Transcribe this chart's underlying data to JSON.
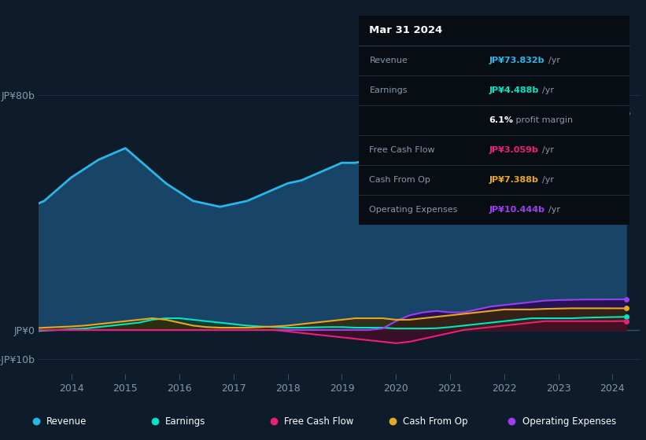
{
  "bg_color": "#0d1b2a",
  "plot_bg_color": "#0d1b2a",
  "grid_color": "#1e3050",
  "ylim": [
    -15,
    90
  ],
  "yticks": [
    -10,
    0,
    80
  ],
  "ytick_labels": [
    "-JP¥10b",
    "JP¥0",
    "JP¥80b"
  ],
  "xlim_start": 2013.4,
  "xlim_end": 2024.5,
  "xticks": [
    2014,
    2015,
    2016,
    2017,
    2018,
    2019,
    2020,
    2021,
    2022,
    2023,
    2024
  ],
  "revenue_color": "#29b6e8",
  "revenue_fill": "#1a4a6e",
  "earnings_color": "#00e5c3",
  "earnings_fill": "#0a3d35",
  "free_cash_color": "#e8207a",
  "free_cash_fill": "#4a0a25",
  "cash_from_op_color": "#e8a820",
  "cash_from_op_fill": "#3a2800",
  "op_expenses_color": "#9b3ff0",
  "op_expenses_fill": "#2a0a50",
  "revenue_data": {
    "years": [
      2013.25,
      2013.5,
      2013.75,
      2014.0,
      2014.25,
      2014.5,
      2014.75,
      2015.0,
      2015.25,
      2015.5,
      2015.75,
      2016.0,
      2016.25,
      2016.5,
      2016.75,
      2017.0,
      2017.25,
      2017.5,
      2017.75,
      2018.0,
      2018.25,
      2018.5,
      2018.75,
      2019.0,
      2019.25,
      2019.5,
      2019.75,
      2020.0,
      2020.25,
      2020.5,
      2020.75,
      2021.0,
      2021.25,
      2021.5,
      2021.75,
      2022.0,
      2022.25,
      2022.5,
      2022.75,
      2023.0,
      2023.25,
      2023.5,
      2023.75,
      2024.0,
      2024.25
    ],
    "values": [
      42,
      44,
      48,
      52,
      55,
      58,
      60,
      62,
      58,
      54,
      50,
      47,
      44,
      43,
      42,
      43,
      44,
      46,
      48,
      50,
      51,
      53,
      55,
      57,
      57,
      58,
      59,
      58,
      56,
      57,
      58,
      60,
      62,
      65,
      68,
      70,
      73,
      76,
      78,
      78,
      77,
      76,
      75,
      74,
      73.832
    ]
  },
  "earnings_data": {
    "years": [
      2013.25,
      2013.5,
      2013.75,
      2014.0,
      2014.25,
      2014.5,
      2014.75,
      2015.0,
      2015.25,
      2015.5,
      2015.75,
      2016.0,
      2016.25,
      2016.5,
      2016.75,
      2017.0,
      2017.25,
      2017.5,
      2017.75,
      2018.0,
      2018.25,
      2018.5,
      2018.75,
      2019.0,
      2019.25,
      2019.5,
      2019.75,
      2020.0,
      2020.25,
      2020.5,
      2020.75,
      2021.0,
      2021.25,
      2021.5,
      2021.75,
      2022.0,
      2022.25,
      2022.5,
      2022.75,
      2023.0,
      2023.25,
      2023.5,
      2023.75,
      2024.0,
      2024.25
    ],
    "values": [
      -0.5,
      -0.2,
      0.0,
      0.3,
      0.5,
      1.0,
      1.5,
      2.0,
      2.5,
      3.5,
      4.0,
      4.0,
      3.5,
      3.0,
      2.5,
      2.0,
      1.5,
      1.2,
      1.0,
      0.8,
      0.8,
      0.9,
      1.0,
      1.0,
      0.8,
      0.8,
      0.8,
      0.5,
      0.5,
      0.5,
      0.6,
      1.0,
      1.5,
      2.0,
      2.5,
      3.0,
      3.5,
      4.0,
      4.0,
      4.0,
      4.0,
      4.2,
      4.3,
      4.4,
      4.488
    ]
  },
  "free_cash_data": {
    "years": [
      2013.25,
      2013.5,
      2013.75,
      2014.0,
      2014.25,
      2014.5,
      2014.75,
      2015.0,
      2015.25,
      2015.5,
      2015.75,
      2016.0,
      2016.25,
      2016.5,
      2016.75,
      2017.0,
      2017.25,
      2017.5,
      2017.75,
      2018.0,
      2018.25,
      2018.5,
      2018.75,
      2019.0,
      2019.25,
      2019.5,
      2019.75,
      2020.0,
      2020.25,
      2020.5,
      2020.75,
      2021.0,
      2021.25,
      2021.5,
      2021.75,
      2022.0,
      2022.25,
      2022.5,
      2022.75,
      2023.0,
      2023.25,
      2023.5,
      2023.75,
      2024.0,
      2024.25
    ],
    "values": [
      0.0,
      0.0,
      0.0,
      0.0,
      0.0,
      0.0,
      0.0,
      0.0,
      0.0,
      0.0,
      0.0,
      0.0,
      0.0,
      0.0,
      0.0,
      0.0,
      0.0,
      0.0,
      0.0,
      -0.5,
      -1.0,
      -1.5,
      -2.0,
      -2.5,
      -3.0,
      -3.5,
      -4.0,
      -4.5,
      -4.0,
      -3.0,
      -2.0,
      -1.0,
      0.0,
      0.5,
      1.0,
      1.5,
      2.0,
      2.5,
      3.0,
      3.0,
      3.0,
      3.0,
      3.0,
      3.0,
      3.059
    ]
  },
  "cash_from_op_data": {
    "years": [
      2013.25,
      2013.5,
      2013.75,
      2014.0,
      2014.25,
      2014.5,
      2014.75,
      2015.0,
      2015.25,
      2015.5,
      2015.75,
      2016.0,
      2016.25,
      2016.5,
      2016.75,
      2017.0,
      2017.25,
      2017.5,
      2017.75,
      2018.0,
      2018.25,
      2018.5,
      2018.75,
      2019.0,
      2019.25,
      2019.5,
      2019.75,
      2020.0,
      2020.25,
      2020.5,
      2020.75,
      2021.0,
      2021.25,
      2021.5,
      2021.75,
      2022.0,
      2022.25,
      2022.5,
      2022.75,
      2023.0,
      2023.25,
      2023.5,
      2023.75,
      2024.0,
      2024.25
    ],
    "values": [
      0.5,
      0.8,
      1.0,
      1.2,
      1.5,
      2.0,
      2.5,
      3.0,
      3.5,
      4.0,
      3.5,
      2.5,
      1.5,
      1.0,
      0.8,
      0.8,
      0.8,
      1.0,
      1.2,
      1.5,
      2.0,
      2.5,
      3.0,
      3.5,
      4.0,
      4.0,
      4.0,
      3.5,
      3.5,
      4.0,
      4.5,
      5.0,
      5.5,
      6.0,
      6.5,
      7.0,
      7.0,
      7.0,
      7.2,
      7.3,
      7.4,
      7.4,
      7.4,
      7.388,
      7.388
    ]
  },
  "op_expenses_data": {
    "years": [
      2013.25,
      2013.5,
      2013.75,
      2014.0,
      2014.25,
      2014.5,
      2014.75,
      2015.0,
      2015.25,
      2015.5,
      2015.75,
      2016.0,
      2016.25,
      2016.5,
      2016.75,
      2017.0,
      2017.25,
      2017.5,
      2017.75,
      2018.0,
      2018.25,
      2018.5,
      2018.75,
      2019.0,
      2019.25,
      2019.5,
      2019.75,
      2020.0,
      2020.25,
      2020.5,
      2020.75,
      2021.0,
      2021.25,
      2021.5,
      2021.75,
      2022.0,
      2022.25,
      2022.5,
      2022.75,
      2023.0,
      2023.25,
      2023.5,
      2023.75,
      2024.0,
      2024.25
    ],
    "values": [
      0.0,
      0.0,
      0.0,
      0.0,
      0.0,
      0.0,
      0.0,
      0.0,
      0.0,
      0.0,
      0.0,
      0.0,
      0.0,
      0.0,
      0.0,
      0.0,
      0.0,
      0.0,
      0.0,
      0.0,
      0.0,
      0.0,
      0.0,
      0.0,
      0.0,
      0.0,
      0.5,
      3.0,
      5.0,
      6.0,
      6.5,
      6.0,
      6.0,
      7.0,
      8.0,
      8.5,
      9.0,
      9.5,
      10.0,
      10.2,
      10.3,
      10.4,
      10.4,
      10.444,
      10.444
    ]
  },
  "infobox": {
    "title": "Mar 31 2024",
    "rows": [
      {
        "label": "Revenue",
        "value": "JP¥73.832b",
        "unit": "/yr",
        "value_color": "#29b6e8"
      },
      {
        "label": "Earnings",
        "value": "JP¥4.488b",
        "unit": "/yr",
        "value_color": "#00e5c3"
      },
      {
        "label": "",
        "value": "6.1%",
        "unit": " profit margin",
        "value_color": "#ffffff"
      },
      {
        "label": "Free Cash Flow",
        "value": "JP¥3.059b",
        "unit": "/yr",
        "value_color": "#e8207a"
      },
      {
        "label": "Cash From Op",
        "value": "JP¥7.388b",
        "unit": "/yr",
        "value_color": "#e8a820"
      },
      {
        "label": "Operating Expenses",
        "value": "JP¥10.444b",
        "unit": "/yr",
        "value_color": "#9b3ff0"
      }
    ]
  },
  "legend": [
    {
      "label": "Revenue",
      "color": "#29b6e8"
    },
    {
      "label": "Earnings",
      "color": "#00e5c3"
    },
    {
      "label": "Free Cash Flow",
      "color": "#e8207a"
    },
    {
      "label": "Cash From Op",
      "color": "#e8a820"
    },
    {
      "label": "Operating Expenses",
      "color": "#9b3ff0"
    }
  ]
}
